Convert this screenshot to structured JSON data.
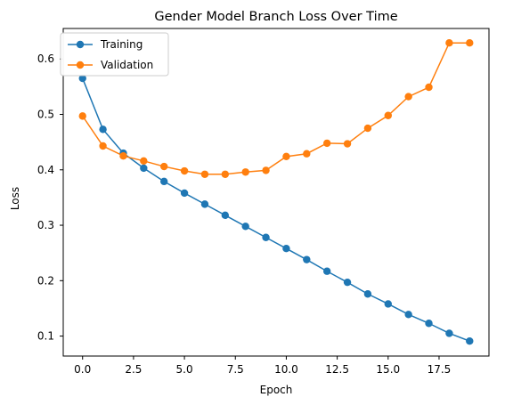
{
  "chart_data": {
    "type": "line",
    "title": "Gender Model Branch Loss Over Time",
    "xlabel": "Epoch",
    "ylabel": "Loss",
    "xlim": [
      -0.95,
      19.95
    ],
    "ylim": [
      0.064,
      0.655
    ],
    "x": [
      0,
      1,
      2,
      3,
      4,
      5,
      6,
      7,
      8,
      9,
      10,
      11,
      12,
      13,
      14,
      15,
      16,
      17,
      18,
      19
    ],
    "xticks": [
      0.0,
      2.5,
      5.0,
      7.5,
      10.0,
      12.5,
      15.0,
      17.5
    ],
    "xtick_labels": [
      "0.0",
      "2.5",
      "5.0",
      "7.5",
      "10.0",
      "12.5",
      "15.0",
      "17.5"
    ],
    "yticks": [
      0.1,
      0.2,
      0.3,
      0.4,
      0.5,
      0.6
    ],
    "ytick_labels": [
      "0.1",
      "0.2",
      "0.3",
      "0.4",
      "0.5",
      "0.6"
    ],
    "grid": false,
    "legend": {
      "location": "upper-left"
    },
    "series": [
      {
        "name": "Training",
        "color": "#1f77b4",
        "marker": "circle",
        "values": [
          0.565,
          0.473,
          0.43,
          0.403,
          0.379,
          0.358,
          0.338,
          0.318,
          0.298,
          0.278,
          0.258,
          0.238,
          0.217,
          0.197,
          0.176,
          0.158,
          0.139,
          0.123,
          0.105,
          0.091
        ]
      },
      {
        "name": "Validation",
        "color": "#ff7f0e",
        "marker": "circle",
        "values": [
          0.497,
          0.443,
          0.425,
          0.416,
          0.406,
          0.398,
          0.392,
          0.392,
          0.396,
          0.399,
          0.424,
          0.429,
          0.448,
          0.447,
          0.475,
          0.498,
          0.532,
          0.549,
          0.629,
          0.629
        ]
      }
    ]
  }
}
